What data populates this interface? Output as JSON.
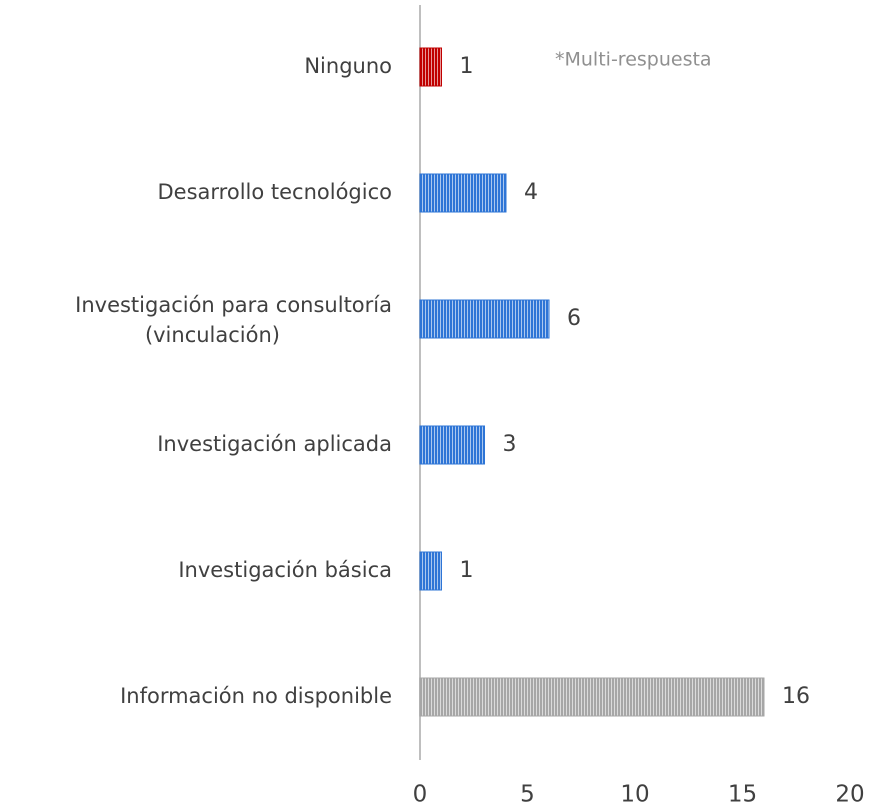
{
  "chart_data": {
    "type": "barh",
    "annotation": "*Multi-respuesta",
    "categories": [
      "Ninguno",
      "Desarrollo tecnológico",
      "Investigación para consultoría (vinculación)",
      "Investigación aplicada",
      "Investigación básica",
      "Información no disponible"
    ],
    "values": [
      1,
      4,
      6,
      3,
      1,
      16
    ],
    "colors": [
      "#c00000",
      "#2e75d6",
      "#2e75d6",
      "#2e75d6",
      "#2e75d6",
      "#a6a6a6"
    ],
    "xlim": [
      0,
      20
    ],
    "xticks": [
      0,
      5,
      10,
      15,
      20
    ],
    "grid": false
  }
}
